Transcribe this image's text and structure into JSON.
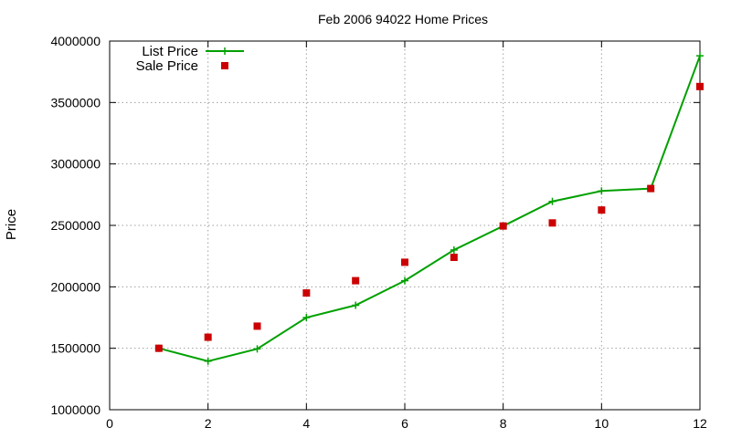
{
  "chart_data": {
    "type": "line",
    "title": "Feb 2006 94022 Home Prices",
    "xlabel": "",
    "ylabel": "Price",
    "xlim": [
      0,
      12
    ],
    "ylim": [
      1000000,
      4000000
    ],
    "x_ticks": [
      0,
      2,
      4,
      6,
      8,
      10,
      12
    ],
    "y_ticks": [
      1000000,
      1500000,
      2000000,
      2500000,
      3000000,
      3500000,
      4000000
    ],
    "grid": true,
    "legend_position": "top-left",
    "series": [
      {
        "name": "List Price",
        "style": "line-with-plus",
        "color": "#00a000",
        "x": [
          1,
          2,
          3,
          4,
          5,
          6,
          7,
          8,
          9,
          10,
          11,
          12
        ],
        "y": [
          1500000,
          1395000,
          1495000,
          1750000,
          1850000,
          2050000,
          2300000,
          2495000,
          2695000,
          2780000,
          2800000,
          3880000
        ]
      },
      {
        "name": "Sale Price",
        "style": "square-points",
        "color": "#cc0000",
        "x": [
          1,
          2,
          3,
          4,
          5,
          6,
          7,
          8,
          9,
          10,
          11,
          12
        ],
        "y": [
          1500000,
          1590000,
          1680000,
          1950000,
          2050000,
          2200000,
          2240000,
          2495000,
          2520000,
          2625000,
          2800000,
          3630000
        ]
      }
    ]
  }
}
